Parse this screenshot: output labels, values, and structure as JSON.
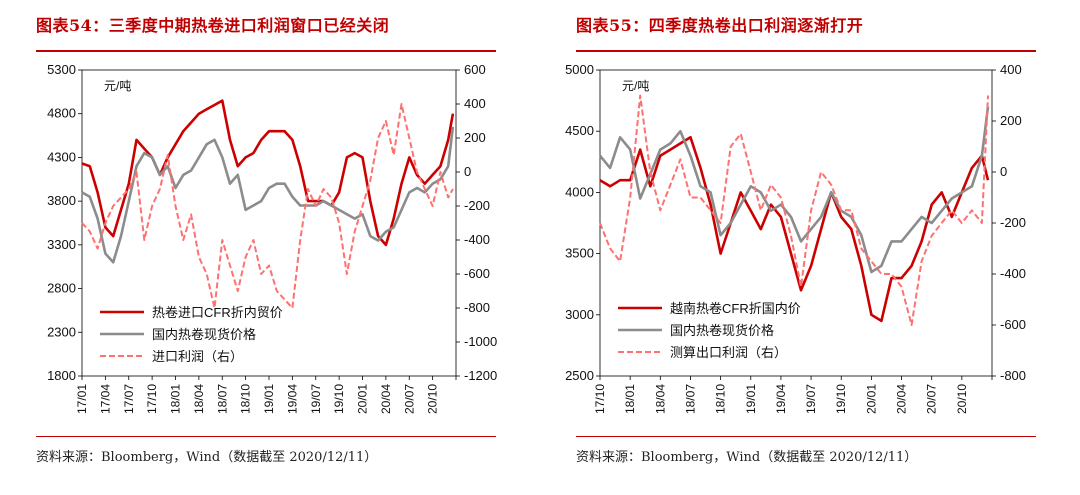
{
  "charts": [
    {
      "title": "图表54：三季度中期热卷进口利润窗口已经关闭",
      "source": "资料来源：Bloomberg，Wind（数据截至 2020/12/11）",
      "unit_label": "元/吨"
    },
    {
      "title": "图表55：四季度热卷出口利润逐渐打开",
      "source": "资料来源：Bloomberg，Wind（数据截至 2020/12/11）",
      "unit_label": "元/吨"
    }
  ],
  "chart_data": [
    {
      "type": "line",
      "x_tick_labels": [
        "17/01",
        "17/04",
        "17/07",
        "17/10",
        "18/01",
        "18/04",
        "18/07",
        "18/10",
        "19/01",
        "19/04",
        "19/07",
        "19/10",
        "20/01",
        "20/04",
        "20/07",
        "20/10"
      ],
      "x_range": [
        0,
        48
      ],
      "ylim_left": [
        1800,
        5300
      ],
      "yticks_left": [
        1800,
        2300,
        2800,
        3300,
        3800,
        4300,
        4800,
        5300
      ],
      "ylim_right": [
        -1200,
        600
      ],
      "yticks_right": [
        -1200,
        -1000,
        -800,
        -600,
        -400,
        -200,
        0,
        200,
        400,
        600
      ],
      "legend_position": "bottom-left",
      "series": [
        {
          "name": "热卷进口CFR折内贸价",
          "axis": "left",
          "color": "#cc0000",
          "style": "solid",
          "x": [
            0,
            1,
            2,
            3,
            4,
            5,
            6,
            7,
            8,
            9,
            10,
            11,
            12,
            13,
            14,
            15,
            16,
            17,
            18,
            19,
            20,
            21,
            22,
            23,
            24,
            25,
            26,
            27,
            28,
            29,
            30,
            31,
            32,
            33,
            34,
            35,
            36,
            37,
            38,
            39,
            40,
            41,
            42,
            43,
            44,
            45,
            46,
            47,
            47.6
          ],
          "values": [
            4230,
            4200,
            3900,
            3500,
            3400,
            3700,
            4000,
            4500,
            4400,
            4300,
            4100,
            4300,
            4450,
            4600,
            4700,
            4800,
            4850,
            4900,
            4950,
            4500,
            4200,
            4300,
            4350,
            4500,
            4600,
            4600,
            4600,
            4500,
            4200,
            3800,
            3800,
            3800,
            3750,
            3900,
            4300,
            4350,
            4300,
            3800,
            3400,
            3300,
            3600,
            4000,
            4300,
            4100,
            4000,
            4100,
            4200,
            4500,
            4800
          ]
        },
        {
          "name": "国内热卷现货价格",
          "axis": "left",
          "color": "#8c8c8c",
          "style": "solid",
          "x": [
            0,
            1,
            2,
            3,
            4,
            5,
            6,
            7,
            8,
            9,
            10,
            11,
            12,
            13,
            14,
            15,
            16,
            17,
            18,
            19,
            20,
            21,
            22,
            23,
            24,
            25,
            26,
            27,
            28,
            29,
            30,
            31,
            32,
            33,
            34,
            35,
            36,
            37,
            38,
            39,
            40,
            41,
            42,
            43,
            44,
            45,
            46,
            47,
            47.6
          ],
          "values": [
            3900,
            3850,
            3600,
            3200,
            3100,
            3400,
            3800,
            4200,
            4350,
            4300,
            4100,
            4200,
            3950,
            4100,
            4150,
            4300,
            4450,
            4500,
            4300,
            4000,
            4100,
            3700,
            3750,
            3800,
            3950,
            4000,
            4000,
            3850,
            3750,
            3750,
            3750,
            3800,
            3750,
            3700,
            3650,
            3600,
            3650,
            3400,
            3350,
            3450,
            3500,
            3700,
            3900,
            3950,
            3900,
            4000,
            4050,
            4200,
            4650
          ]
        },
        {
          "name": "进口利润（右）",
          "axis": "right",
          "color": "#ff7070",
          "style": "dashed",
          "x": [
            0,
            1,
            2,
            3,
            4,
            5,
            6,
            7,
            8,
            9,
            10,
            11,
            12,
            13,
            14,
            15,
            16,
            17,
            18,
            19,
            20,
            21,
            22,
            23,
            24,
            25,
            26,
            27,
            28,
            29,
            30,
            31,
            32,
            33,
            34,
            35,
            36,
            37,
            38,
            39,
            40,
            41,
            42,
            43,
            44,
            45,
            46,
            47,
            47.6
          ],
          "values": [
            -300,
            -350,
            -450,
            -300,
            -200,
            -150,
            -100,
            0,
            -400,
            -200,
            -100,
            100,
            -200,
            -400,
            -250,
            -500,
            -600,
            -800,
            -400,
            -550,
            -700,
            -500,
            -400,
            -600,
            -550,
            -700,
            -750,
            -800,
            -400,
            -100,
            -200,
            -100,
            -150,
            -300,
            -600,
            -350,
            -200,
            -50,
            200,
            300,
            100,
            400,
            200,
            0,
            -100,
            -200,
            0,
            -150,
            -100
          ]
        }
      ]
    },
    {
      "type": "line",
      "x_tick_labels": [
        "17/10",
        "18/01",
        "18/04",
        "18/07",
        "18/10",
        "19/01",
        "19/04",
        "19/07",
        "19/10",
        "20/01",
        "20/04",
        "20/07",
        "20/10"
      ],
      "x_range": [
        0,
        39
      ],
      "ylim_left": [
        2500,
        5000
      ],
      "yticks_left": [
        2500,
        3000,
        3500,
        4000,
        4500,
        5000
      ],
      "ylim_right": [
        -800,
        400
      ],
      "yticks_right": [
        -800,
        -600,
        -400,
        -200,
        0,
        200,
        400
      ],
      "legend_position": "bottom-left",
      "series": [
        {
          "name": "越南热卷CFR折国内价",
          "axis": "left",
          "color": "#cc0000",
          "style": "solid",
          "x": [
            0,
            1,
            2,
            3,
            4,
            5,
            6,
            7,
            8,
            9,
            10,
            11,
            12,
            13,
            14,
            15,
            16,
            17,
            18,
            19,
            20,
            21,
            22,
            23,
            24,
            25,
            26,
            27,
            28,
            29,
            30,
            31,
            32,
            33,
            34,
            35,
            36,
            37,
            38,
            38.6
          ],
          "values": [
            4100,
            4050,
            4100,
            4100,
            4350,
            4050,
            4300,
            4350,
            4400,
            4450,
            4200,
            3900,
            3500,
            3750,
            4000,
            3850,
            3700,
            3900,
            3800,
            3500,
            3200,
            3400,
            3700,
            4000,
            3800,
            3700,
            3400,
            3000,
            2950,
            3300,
            3300,
            3400,
            3600,
            3900,
            4000,
            3800,
            4000,
            4200,
            4300,
            4100
          ]
        },
        {
          "name": "国内热卷现货价格",
          "axis": "left",
          "color": "#8c8c8c",
          "style": "solid",
          "x": [
            0,
            1,
            2,
            3,
            4,
            5,
            6,
            7,
            8,
            9,
            10,
            11,
            12,
            13,
            14,
            15,
            16,
            17,
            18,
            19,
            20,
            21,
            22,
            23,
            24,
            25,
            26,
            27,
            28,
            29,
            30,
            31,
            32,
            33,
            34,
            35,
            36,
            37,
            38,
            38.6
          ],
          "values": [
            4300,
            4200,
            4450,
            4350,
            3950,
            4150,
            4350,
            4400,
            4500,
            4300,
            4050,
            4000,
            3650,
            3750,
            3900,
            4050,
            4000,
            3850,
            3900,
            3800,
            3600,
            3700,
            3800,
            4000,
            3850,
            3800,
            3650,
            3350,
            3400,
            3600,
            3600,
            3700,
            3800,
            3750,
            3850,
            3950,
            4000,
            4050,
            4300,
            4700
          ]
        },
        {
          "name": "测算出口利润（右）",
          "axis": "right",
          "color": "#ff7070",
          "style": "dashed",
          "x": [
            0,
            1,
            2,
            3,
            4,
            5,
            6,
            7,
            8,
            9,
            10,
            11,
            12,
            13,
            14,
            15,
            16,
            17,
            18,
            19,
            20,
            21,
            22,
            23,
            24,
            25,
            26,
            27,
            28,
            29,
            30,
            31,
            32,
            33,
            34,
            35,
            36,
            37,
            38,
            38.6
          ],
          "values": [
            -200,
            -300,
            -350,
            -100,
            300,
            0,
            -150,
            -50,
            50,
            -100,
            -100,
            -150,
            -200,
            100,
            150,
            0,
            -150,
            -50,
            -100,
            -250,
            -450,
            -150,
            0,
            -50,
            -150,
            -150,
            -300,
            -350,
            -400,
            -400,
            -450,
            -600,
            -350,
            -250,
            -200,
            -150,
            -200,
            -150,
            -200,
            300
          ]
        }
      ]
    }
  ]
}
